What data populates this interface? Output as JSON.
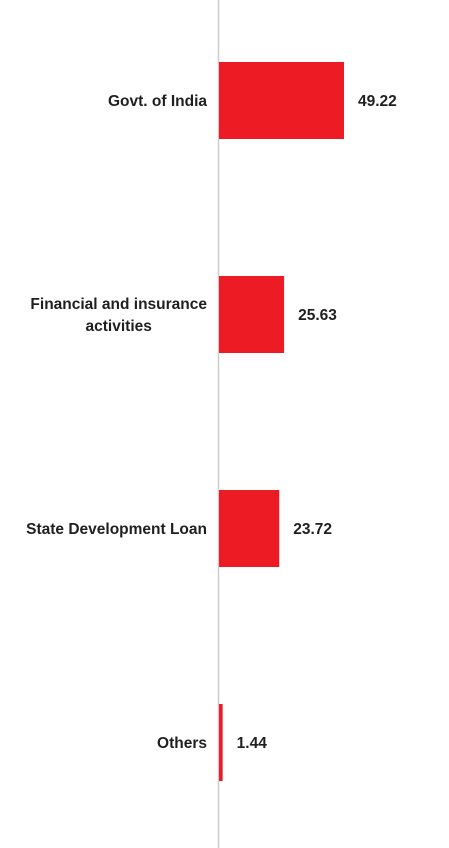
{
  "chart_data": {
    "type": "bar",
    "orientation": "horizontal",
    "categories": [
      [
        "Govt. of India"
      ],
      [
        "Financial and insurance",
        "activities"
      ],
      [
        "State Development Loan"
      ],
      [
        "Others"
      ]
    ],
    "values": [
      49.22,
      25.63,
      23.72,
      1.44
    ],
    "value_labels": [
      "49.22",
      "25.63",
      "23.72",
      "1.44"
    ],
    "bar_color": "#ed1c24",
    "axis_color": "#cccccc",
    "grid": false,
    "legend": "none"
  }
}
